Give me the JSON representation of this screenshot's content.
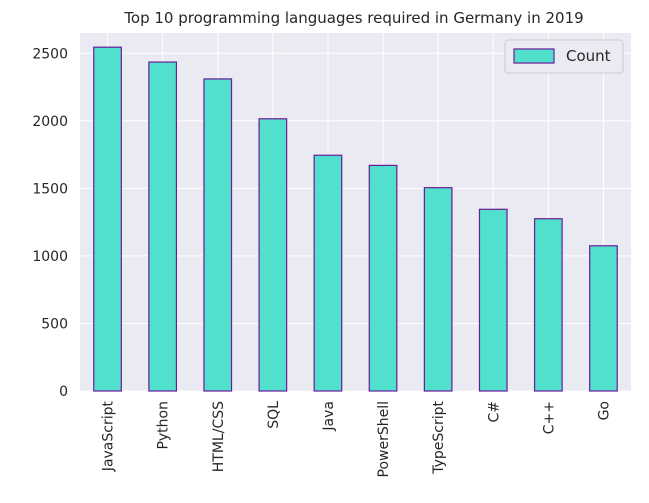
{
  "chart_data": {
    "type": "bar",
    "title": "Top 10 programming languages required in Germany in 2019",
    "xlabel": "",
    "ylabel": "",
    "categories": [
      "JavaScript",
      "Python",
      "HTML/CSS",
      "SQL",
      "Java",
      "PowerShell",
      "TypeScript",
      "C#",
      "C++",
      "Go"
    ],
    "series": [
      {
        "name": "Count",
        "values": [
          2545,
          2435,
          2310,
          2015,
          1745,
          1670,
          1505,
          1345,
          1275,
          1075
        ]
      }
    ],
    "ylim": [
      0,
      2650
    ],
    "yticks": [
      0,
      500,
      1000,
      1500,
      2000,
      2500
    ],
    "grid": true,
    "legend_position": "top-right",
    "colors": {
      "bar_fill": "#50E0CC",
      "bar_edge": "#6A1B9A",
      "plot_background": "#EAEAF2",
      "grid": "#FFFFFF",
      "text": "#262626"
    }
  }
}
